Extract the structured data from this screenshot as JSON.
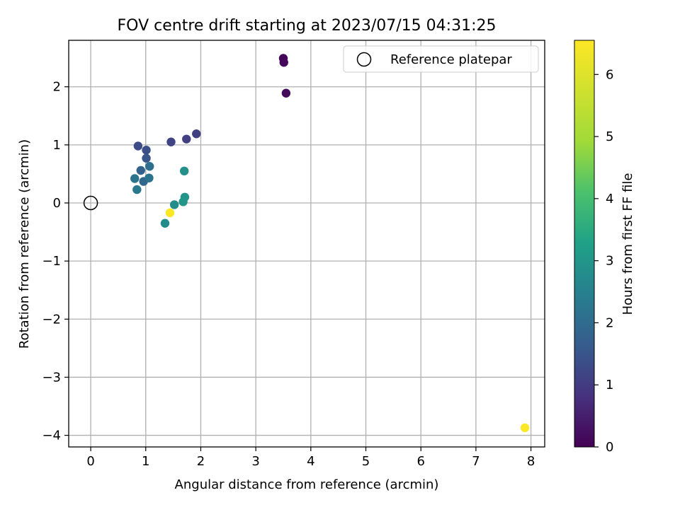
{
  "chart_data": {
    "type": "scatter",
    "title": "FOV centre drift starting at 2023/07/15 04:31:25",
    "xlabel": "Angular distance from reference (arcmin)",
    "ylabel": "Rotation from reference (arcmin)",
    "xlim": [
      -0.4,
      8.25
    ],
    "ylim": [
      -4.2,
      2.8
    ],
    "x_ticks": [
      0,
      1,
      2,
      3,
      4,
      5,
      6,
      7,
      8
    ],
    "y_ticks": [
      -4,
      -3,
      -2,
      -1,
      0,
      1,
      2
    ],
    "x_tick_labels": [
      "0",
      "1",
      "2",
      "3",
      "4",
      "5",
      "6",
      "7",
      "8"
    ],
    "y_tick_labels": [
      "−4",
      "−3",
      "−2",
      "−1",
      "0",
      "1",
      "2"
    ],
    "grid": true,
    "legend": {
      "placement": "top-right",
      "entries": [
        {
          "label": "Reference platepar",
          "marker": "open-circle"
        }
      ]
    },
    "reference_point": {
      "x": 0,
      "y": 0
    },
    "colorbar": {
      "label": "Hours from first FF file",
      "colormap": "viridis",
      "range": [
        0,
        6.55
      ],
      "ticks": [
        0,
        1,
        2,
        3,
        4,
        5,
        6
      ],
      "tick_labels": [
        "0",
        "1",
        "2",
        "3",
        "4",
        "5",
        "6"
      ]
    },
    "points": [
      {
        "x": 3.5,
        "y": 2.49,
        "hours": 0.05
      },
      {
        "x": 3.51,
        "y": 2.42,
        "hours": 0.1
      },
      {
        "x": 3.55,
        "y": 1.89,
        "hours": 0.15
      },
      {
        "x": 1.92,
        "y": 1.19,
        "hours": 1.05
      },
      {
        "x": 1.74,
        "y": 1.1,
        "hours": 1.1
      },
      {
        "x": 1.46,
        "y": 1.05,
        "hours": 1.15
      },
      {
        "x": 0.86,
        "y": 0.98,
        "hours": 1.3
      },
      {
        "x": 1.01,
        "y": 0.91,
        "hours": 1.4
      },
      {
        "x": 1.01,
        "y": 0.77,
        "hours": 1.5
      },
      {
        "x": 0.91,
        "y": 0.56,
        "hours": 1.8
      },
      {
        "x": 1.07,
        "y": 0.63,
        "hours": 2.1
      },
      {
        "x": 0.8,
        "y": 0.42,
        "hours": 2.2
      },
      {
        "x": 0.96,
        "y": 0.37,
        "hours": 1.9
      },
      {
        "x": 1.06,
        "y": 0.43,
        "hours": 2.2
      },
      {
        "x": 0.84,
        "y": 0.23,
        "hours": 2.3
      },
      {
        "x": 1.7,
        "y": 0.55,
        "hours": 2.9
      },
      {
        "x": 1.71,
        "y": 0.1,
        "hours": 2.95
      },
      {
        "x": 1.68,
        "y": 0.02,
        "hours": 3.0
      },
      {
        "x": 1.52,
        "y": -0.03,
        "hours": 2.8
      },
      {
        "x": 1.35,
        "y": -0.35,
        "hours": 2.75
      },
      {
        "x": 1.44,
        "y": -0.17,
        "hours": 6.5
      },
      {
        "x": 7.89,
        "y": -3.87,
        "hours": 6.5
      }
    ]
  }
}
